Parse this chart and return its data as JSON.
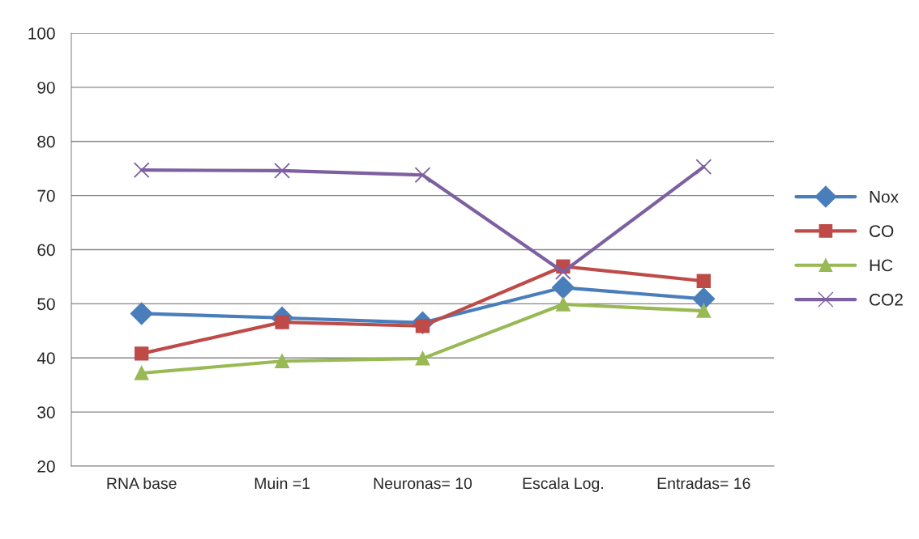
{
  "chart_data": {
    "type": "line",
    "categories": [
      "RNA base",
      "Muin =1",
      "Neuronas= 10",
      "Escala Log.",
      "Entradas= 16"
    ],
    "series": [
      {
        "name": "Nox",
        "color": "#4a7ebb",
        "marker": "diamond",
        "values": [
          48.2,
          47.4,
          46.5,
          53.0,
          50.9
        ]
      },
      {
        "name": "CO",
        "color": "#be4b48",
        "marker": "square",
        "values": [
          40.8,
          46.6,
          45.9,
          56.9,
          54.2
        ]
      },
      {
        "name": "HC",
        "color": "#98b954",
        "marker": "triangle",
        "values": [
          37.2,
          39.4,
          39.9,
          49.9,
          48.7
        ]
      },
      {
        "name": "CO2",
        "color": "#7d60a0",
        "marker": "cross",
        "values": [
          74.7,
          74.6,
          73.8,
          55.9,
          75.3
        ]
      }
    ],
    "ylim": [
      20,
      100
    ],
    "yticks": [
      20,
      30,
      40,
      50,
      60,
      70,
      80,
      90,
      100
    ],
    "grid": "y",
    "legend": "right",
    "line_style": "solid"
  }
}
